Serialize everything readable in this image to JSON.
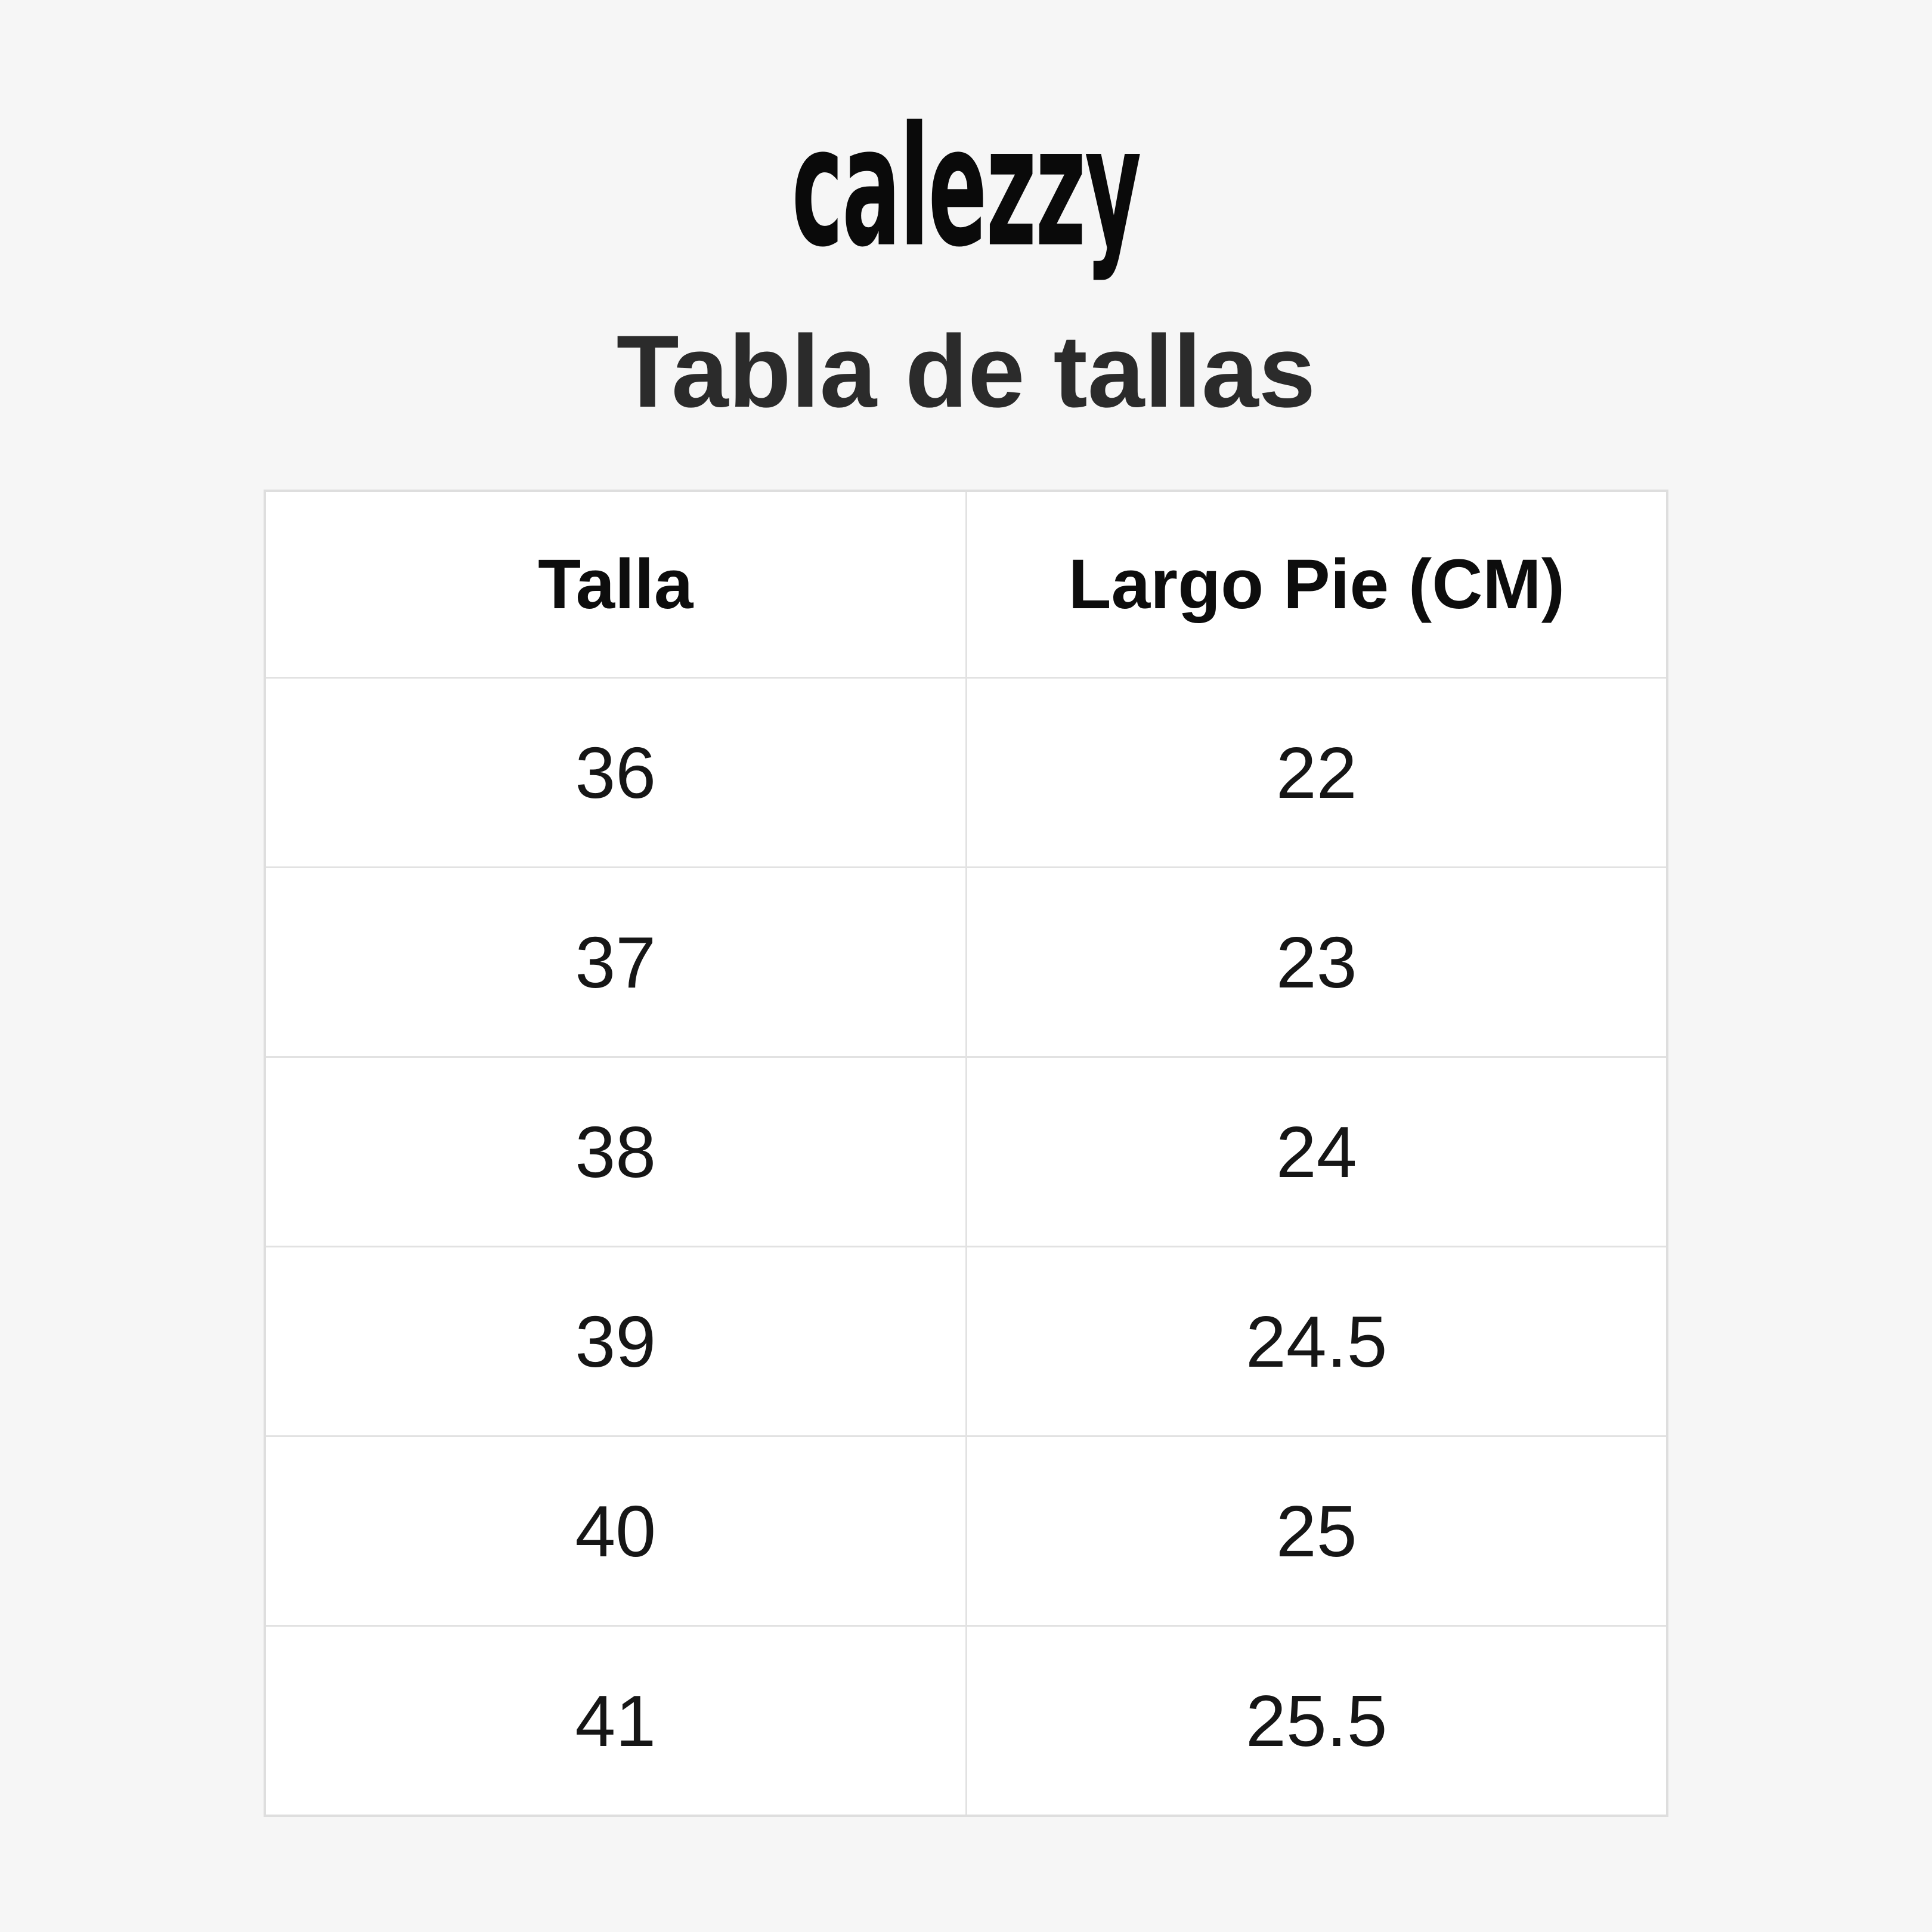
{
  "brand": {
    "logo_text": "calezzy"
  },
  "heading": "Tabla de tallas",
  "colors": {
    "page_background": "#f6f6f6",
    "table_background": "#ffffff",
    "table_border": "#e2e2e2",
    "title_text": "#2b2b2b",
    "cell_text": "#161616"
  },
  "chart_data": {
    "type": "table",
    "title": "Tabla de tallas",
    "columns": [
      "Talla",
      "Largo Pie (CM)"
    ],
    "rows": [
      [
        "36",
        "22"
      ],
      [
        "37",
        "23"
      ],
      [
        "38",
        "24"
      ],
      [
        "39",
        "24.5"
      ],
      [
        "40",
        "25"
      ],
      [
        "41",
        "25.5"
      ]
    ]
  }
}
